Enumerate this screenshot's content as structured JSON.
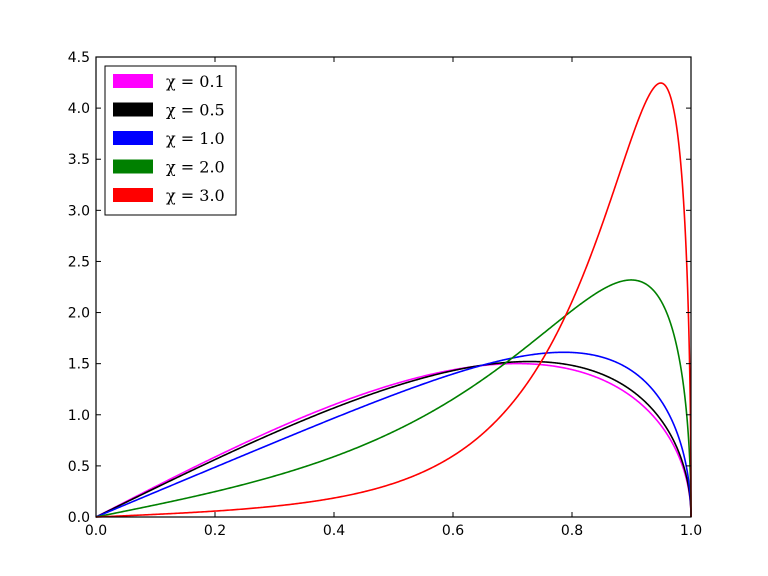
{
  "chart_data": {
    "type": "line",
    "title": "",
    "xlabel": "",
    "ylabel": "",
    "xlim": [
      0.0,
      1.0
    ],
    "ylim": [
      0.0,
      4.5
    ],
    "grid": false,
    "legend_position": "upper left",
    "x_ticks": [
      "0.0",
      "0.2",
      "0.4",
      "0.6",
      "0.8",
      "1.0"
    ],
    "y_ticks": [
      "0.0",
      "0.5",
      "1.0",
      "1.5",
      "2.0",
      "2.5",
      "3.0",
      "3.5",
      "4.0",
      "4.5"
    ],
    "x": [
      0.0,
      0.1,
      0.2,
      0.3,
      0.4,
      0.5,
      0.6,
      0.7,
      0.8,
      0.9,
      0.95,
      1.0
    ],
    "series": [
      {
        "name": "χ = 0.1",
        "legend": "χ = 0.1",
        "chi": 0.1,
        "color": "#ff00ff",
        "values": [
          0.0,
          0.3,
          0.59,
          0.86,
          1.1,
          1.3,
          1.44,
          1.5,
          1.44,
          1.18,
          0.89,
          0.0
        ]
      },
      {
        "name": "χ = 0.5",
        "legend": "χ = 0.5",
        "chi": 0.5,
        "color": "#000000",
        "values": [
          0.0,
          0.29,
          0.57,
          0.83,
          1.07,
          1.28,
          1.43,
          1.51,
          1.47,
          1.22,
          0.92,
          0.0
        ]
      },
      {
        "name": "χ = 1.0",
        "legend": "χ = 1.0",
        "chi": 1.0,
        "color": "#0000ff",
        "values": [
          0.0,
          0.24,
          0.48,
          0.72,
          0.95,
          1.18,
          1.38,
          1.54,
          1.6,
          1.4,
          1.1,
          0.0
        ]
      },
      {
        "name": "χ = 2.0",
        "legend": "χ = 2.0",
        "chi": 2.0,
        "color": "#008000",
        "values": [
          0.0,
          0.12,
          0.26,
          0.42,
          0.61,
          0.84,
          1.14,
          1.53,
          1.98,
          2.31,
          2.19,
          0.0
        ]
      },
      {
        "name": "χ = 3.0",
        "legend": "χ = 3.0",
        "chi": 3.0,
        "color": "#ff0000",
        "values": [
          0.0,
          0.03,
          0.07,
          0.13,
          0.23,
          0.41,
          0.73,
          1.33,
          2.37,
          3.82,
          4.23,
          0.0
        ]
      }
    ],
    "annotations": []
  },
  "legend": {
    "items": [
      {
        "label": "χ = 0.1",
        "color": "#ff00ff"
      },
      {
        "label": "χ = 0.5",
        "color": "#000000"
      },
      {
        "label": "χ = 1.0",
        "color": "#0000ff"
      },
      {
        "label": "χ = 2.0",
        "color": "#008000"
      },
      {
        "label": "χ = 3.0",
        "color": "#ff0000"
      }
    ]
  }
}
